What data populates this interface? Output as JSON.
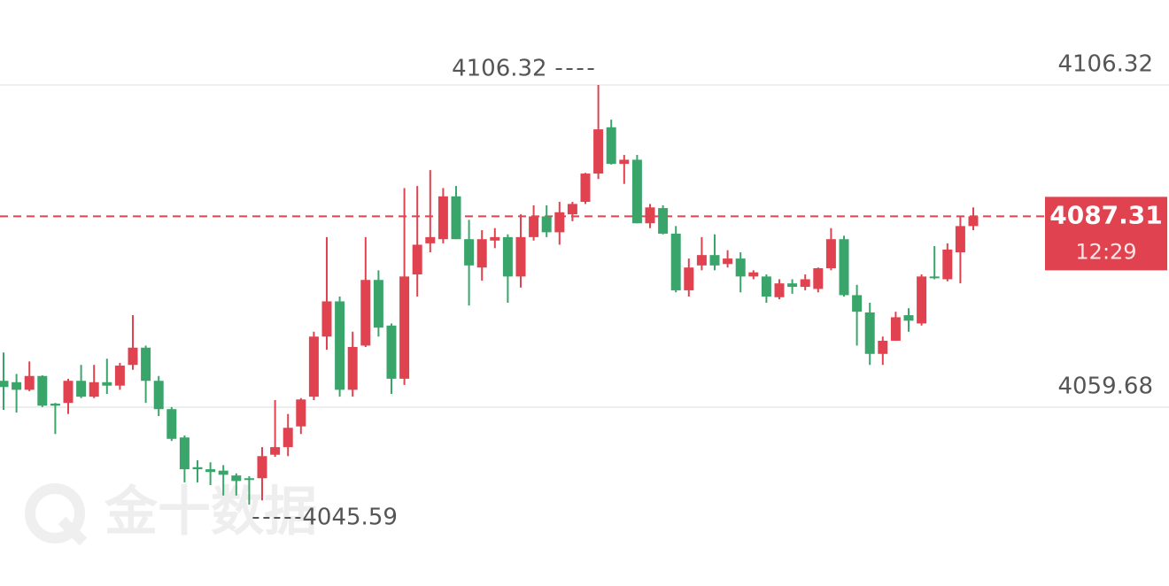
{
  "chart_data": {
    "type": "candlestick",
    "open": [
      4063.5,
      4063.3,
      4062.2,
      4064.2,
      4060.2,
      4060.3,
      4063.5,
      4061.2,
      4063.3,
      4062.8,
      4065.8,
      4068.3,
      4063.5,
      4059.4,
      4055.3,
      4051.0,
      4050.7,
      4050.5,
      4049.8,
      4049.4,
      4049.4,
      4052.8,
      4053.9,
      4056.9,
      4061.2,
      4069.9,
      4075.0,
      4062.2,
      4068.6,
      4078.1,
      4071.5,
      4063.8,
      4078.9,
      4083.4,
      4084.0,
      4090.2,
      4084.0,
      4079.9,
      4083.8,
      4084.3,
      4078.6,
      4084.3,
      4087.3,
      4085.0,
      4087.6,
      4089.4,
      4093.5,
      4100.2,
      4094.9,
      4095.5,
      4086.3,
      4088.5,
      4084.8,
      4076.6,
      4080.2,
      4081.7,
      4080.4,
      4081.2,
      4078.6,
      4078.6,
      4075.6,
      4077.6,
      4077.1,
      4076.8,
      4079.8,
      4084.0,
      4075.9,
      4073.4,
      4067.4,
      4069.3,
      4073.0,
      4071.8,
      4078.6,
      4078.2,
      4082.1,
      4085.9
    ],
    "high": [
      4067.6,
      4064.5,
      4066.3,
      4064.3,
      4060.3,
      4063.8,
      4065.8,
      4065.8,
      4066.7,
      4066.1,
      4073.0,
      4068.6,
      4064.2,
      4059.7,
      4055.6,
      4052.0,
      4051.7,
      4051.3,
      4050.1,
      4049.7,
      4053.9,
      4060.7,
      4058.7,
      4061.0,
      4070.6,
      4084.3,
      4075.7,
      4070.6,
      4084.3,
      4079.5,
      4071.8,
      4091.4,
      4091.7,
      4094.0,
      4091.4,
      4091.7,
      4086.8,
      4085.3,
      4085.6,
      4084.7,
      4087.6,
      4088.9,
      4088.9,
      4089.4,
      4089.4,
      4093.6,
      4106.32,
      4101.3,
      4096.2,
      4096.2,
      4089.1,
      4088.9,
      4085.9,
      4081.2,
      4084.3,
      4084.7,
      4082.4,
      4082.1,
      4079.5,
      4078.9,
      4078.2,
      4078.2,
      4078.9,
      4079.9,
      4085.6,
      4084.5,
      4077.4,
      4074.8,
      4069.9,
      4073.5,
      4074.0,
      4078.9,
      4083.0,
      4083.4,
      4087.3,
      4088.6
    ],
    "low": [
      4059.3,
      4058.9,
      4062.0,
      4059.7,
      4055.8,
      4058.7,
      4061.0,
      4061.0,
      4061.6,
      4062.2,
      4065.1,
      4060.3,
      4058.4,
      4054.8,
      4048.8,
      4048.8,
      4048.4,
      4046.9,
      4046.9,
      4045.59,
      4046.2,
      4052.5,
      4052.6,
      4055.8,
      4060.7,
      4068.0,
      4061.2,
      4061.2,
      4068.4,
      4069.9,
      4061.6,
      4062.9,
      4075.7,
      4082.1,
      4083.4,
      4084.0,
      4074.4,
      4078.0,
      4082.7,
      4074.8,
      4077.0,
      4083.8,
      4084.3,
      4083.2,
      4086.6,
      4089.1,
      4092.7,
      4094.8,
      4092.0,
      4086.3,
      4085.6,
      4084.7,
      4076.3,
      4075.7,
      4079.5,
      4079.5,
      4079.9,
      4076.3,
      4078.2,
      4074.8,
      4075.3,
      4076.1,
      4076.6,
      4076.3,
      4079.5,
      4075.7,
      4068.6,
      4065.8,
      4065.8,
      4069.3,
      4070.6,
      4071.5,
      4078.2,
      4077.9,
      4077.6,
      4085.3
    ],
    "close": [
      4062.6,
      4062.2,
      4064.2,
      4059.9,
      4059.9,
      4063.5,
      4061.2,
      4063.3,
      4062.8,
      4065.7,
      4068.3,
      4063.5,
      4059.4,
      4055.1,
      4050.7,
      4050.7,
      4050.3,
      4049.9,
      4049.0,
      4049.3,
      4052.6,
      4053.9,
      4056.7,
      4060.8,
      4069.9,
      4075.0,
      4062.2,
      4068.4,
      4078.1,
      4071.2,
      4063.8,
      4078.6,
      4083.2,
      4084.3,
      4090.2,
      4084.0,
      4080.2,
      4084.0,
      4084.3,
      4078.6,
      4084.3,
      4087.3,
      4085.0,
      4087.9,
      4089.1,
      4093.5,
      4099.9,
      4094.9,
      4095.5,
      4086.3,
      4088.6,
      4084.8,
      4076.6,
      4079.9,
      4081.7,
      4080.2,
      4081.2,
      4078.6,
      4079.2,
      4075.7,
      4077.6,
      4077.1,
      4078.2,
      4079.8,
      4084.0,
      4075.9,
      4073.5,
      4067.4,
      4069.3,
      4072.7,
      4072.2,
      4078.6,
      4078.4,
      4082.5,
      4085.9,
      4087.31
    ],
    "up_color": "#e0434f",
    "down_color": "#3aa56b",
    "ylim": [
      4036.62,
      4118.62
    ],
    "yticks": [
      4106.32,
      4059.68
    ],
    "grid": true,
    "countdown": "12:29",
    "watermark": "金十数据"
  }
}
